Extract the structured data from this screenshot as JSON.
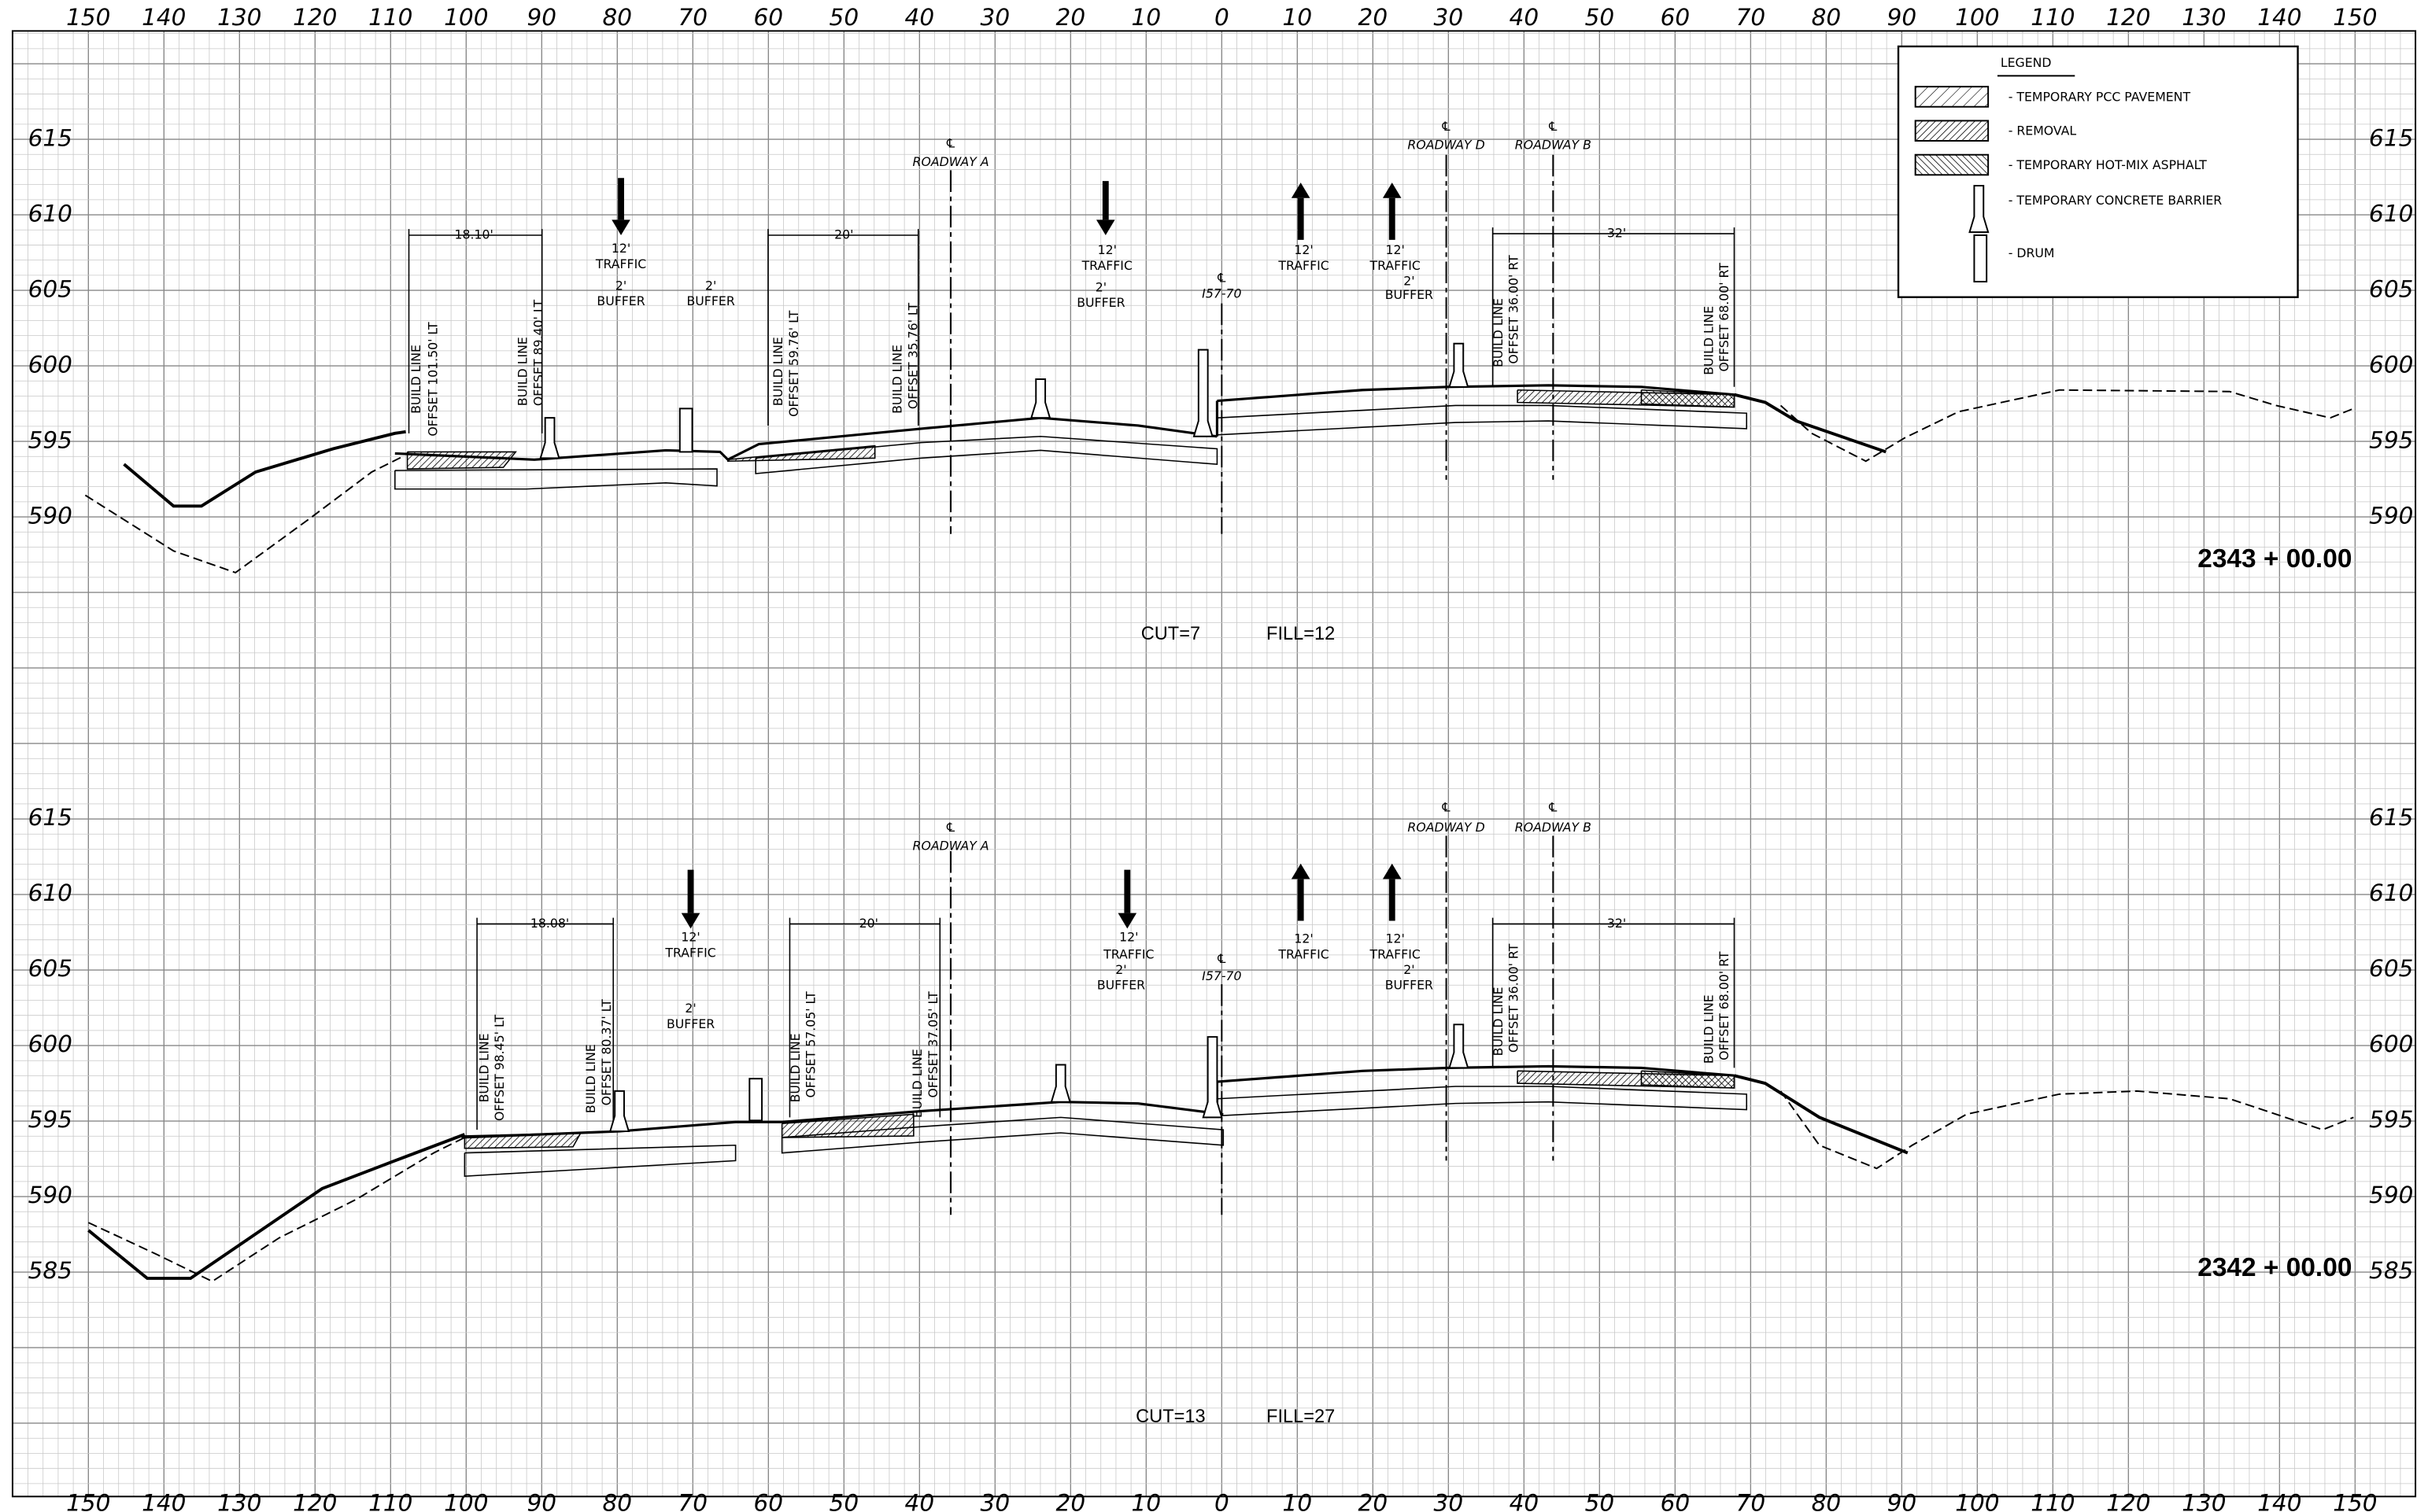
{
  "x_axis_labels": [
    "150",
    "140",
    "130",
    "120",
    "110",
    "100",
    "90",
    "80",
    "70",
    "60",
    "50",
    "40",
    "30",
    "20",
    "10",
    "0",
    "10",
    "20",
    "30",
    "40",
    "50",
    "60",
    "70",
    "80",
    "90",
    "100",
    "110",
    "120",
    "130",
    "140",
    "150"
  ],
  "legend": {
    "title": "LEGEND",
    "items": [
      "- TEMPORARY PCC PAVEMENT",
      "- REMOVAL",
      "- TEMPORARY HOT-MIX ASPHALT",
      "- TEMPORARY CONCRETE BARRIER",
      "- DRUM"
    ]
  },
  "sections": [
    {
      "elevations": [
        "615",
        "610",
        "605",
        "600",
        "595",
        "590"
      ],
      "station": "2343 + 00.00",
      "cut": "CUT=7",
      "fill": "FILL=12",
      "labels": [
        "℄",
        "ROADWAY A",
        "℄",
        "ROADWAY D",
        "℄",
        "ROADWAY B",
        "℄",
        "I57-70",
        "18.10'",
        "20'",
        "32'",
        "12'",
        "TRAFFIC",
        "2'",
        "BUFFER",
        "2'",
        "BUFFER",
        "12'",
        "TRAFFIC",
        "2'",
        "BUFFER",
        "12'",
        "TRAFFIC",
        "12'",
        "TRAFFIC",
        "2'",
        "BUFFER",
        "BUILD LINE",
        "OFFSET 101.50' LT",
        "BUILD LINE",
        "OFFSET 89.40' LT",
        "BUILD LINE",
        "OFFSET 59.76' LT",
        "BUILD LINE",
        "OFFSET 35.76' LT",
        "BUILD LINE",
        "OFFSET 36.00' RT",
        "BUILD LINE",
        "OFFSET 68.00' RT"
      ]
    },
    {
      "elevations": [
        "615",
        "610",
        "605",
        "600",
        "595",
        "590",
        "585"
      ],
      "station": "2342 + 00.00",
      "cut": "CUT=13",
      "fill": "FILL=27",
      "labels": [
        "℄",
        "ROADWAY A",
        "℄",
        "ROADWAY D",
        "℄",
        "ROADWAY B",
        "℄",
        "I57-70",
        "18.08'",
        "20'",
        "32'",
        "12'",
        "TRAFFIC",
        "2'",
        "BUFFER",
        "12'",
        "TRAFFIC",
        "2'",
        "BUFFER",
        "12'",
        "TRAFFIC",
        "12'",
        "TRAFFIC",
        "2'",
        "BUFFER",
        "BUILD LINE",
        "OFFSET 98.45' LT",
        "BUILD LINE",
        "OFFSET 80.37' LT",
        "BUILD LINE",
        "OFFSET 57.05' LT",
        "BUILD LINE",
        "OFFSET 37.05' LT",
        "BUILD LINE",
        "OFFSET 36.00' RT",
        "BUILD LINE",
        "OFFSET 68.00' RT"
      ]
    }
  ]
}
